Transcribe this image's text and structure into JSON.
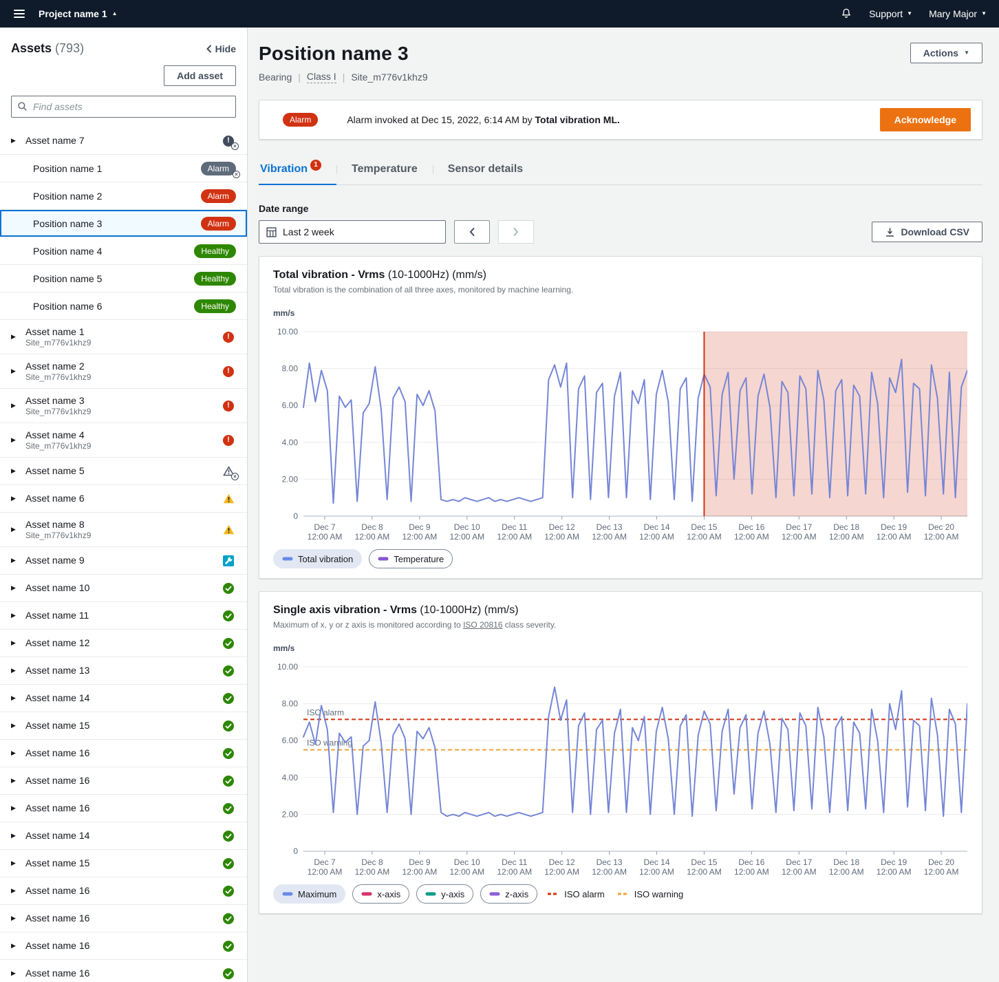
{
  "colors": {
    "alarm_red": "#d13212",
    "healthy_green": "#2e8700",
    "warning_yellow": "#f5b720",
    "maintenance_teal": "#00a1c9",
    "accent_blue": "#0972d3",
    "primary_orange": "#ec7211",
    "chart_line": "#7586d6"
  },
  "topbar": {
    "project_name": "Project name 1",
    "support_label": "Support",
    "user_name": "Mary Major"
  },
  "sidebar": {
    "title": "Assets",
    "count": "(793)",
    "hide_label": "Hide",
    "add_asset_label": "Add asset",
    "search_placeholder": "Find assets",
    "items": [
      {
        "kind": "asset",
        "label": "Asset name 7",
        "icon": "alarm-muted"
      },
      {
        "kind": "position",
        "label": "Position name 1",
        "badge": "Alarm",
        "muted": true
      },
      {
        "kind": "position",
        "label": "Position name 2",
        "badge": "Alarm"
      },
      {
        "kind": "position",
        "label": "Position name 3",
        "badge": "Alarm",
        "selected": true
      },
      {
        "kind": "position",
        "label": "Position name 4",
        "badge": "Healthy"
      },
      {
        "kind": "position",
        "label": "Position name 5",
        "badge": "Healthy"
      },
      {
        "kind": "position",
        "label": "Position name 6",
        "badge": "Healthy"
      },
      {
        "kind": "asset",
        "label": "Asset name 1",
        "sublabel": "Site_m776v1khz9",
        "icon": "alarm"
      },
      {
        "kind": "asset",
        "label": "Asset name 2",
        "sublabel": "Site_m776v1khz9",
        "icon": "alarm"
      },
      {
        "kind": "asset",
        "label": "Asset name 3",
        "sublabel": "Site_m776v1khz9",
        "icon": "alarm"
      },
      {
        "kind": "asset",
        "label": "Asset name 4",
        "sublabel": "Site_m776v1khz9",
        "icon": "alarm"
      },
      {
        "kind": "asset",
        "label": "Asset name 5",
        "icon": "warning-muted"
      },
      {
        "kind": "asset",
        "label": "Asset name 6",
        "icon": "warning"
      },
      {
        "kind": "asset",
        "label": "Asset name 8",
        "sublabel": "Site_m776v1khz9",
        "icon": "warning"
      },
      {
        "kind": "asset",
        "label": "Asset name 9",
        "icon": "maintenance"
      },
      {
        "kind": "asset",
        "label": "Asset name 10",
        "icon": "healthy"
      },
      {
        "kind": "asset",
        "label": "Asset name 11",
        "icon": "healthy"
      },
      {
        "kind": "asset",
        "label": "Asset name 12",
        "icon": "healthy"
      },
      {
        "kind": "asset",
        "label": "Asset name 13",
        "icon": "healthy"
      },
      {
        "kind": "asset",
        "label": "Asset name 14",
        "icon": "healthy"
      },
      {
        "kind": "asset",
        "label": "Asset name 15",
        "icon": "healthy"
      },
      {
        "kind": "asset",
        "label": "Asset name 16",
        "icon": "healthy"
      },
      {
        "kind": "asset",
        "label": "Asset name 16",
        "icon": "healthy"
      },
      {
        "kind": "asset",
        "label": "Asset name 16",
        "icon": "healthy"
      },
      {
        "kind": "asset",
        "label": "Asset name 14",
        "icon": "healthy"
      },
      {
        "kind": "asset",
        "label": "Asset name 15",
        "icon": "healthy"
      },
      {
        "kind": "asset",
        "label": "Asset name 16",
        "icon": "healthy"
      },
      {
        "kind": "asset",
        "label": "Asset name 16",
        "icon": "healthy"
      },
      {
        "kind": "asset",
        "label": "Asset name 16",
        "icon": "healthy"
      },
      {
        "kind": "asset",
        "label": "Asset name 16",
        "icon": "healthy"
      }
    ]
  },
  "page": {
    "title": "Position name 3",
    "meta": [
      "Bearing",
      "Class I",
      "Site_m776v1khz9"
    ],
    "actions_label": "Actions"
  },
  "alarm_banner": {
    "badge": "Alarm",
    "message_prefix": "Alarm invoked at Dec 15, 2022, 6:14 AM by ",
    "message_bold": "Total vibration ML.",
    "acknowledge_label": "Acknowledge"
  },
  "tabs": [
    {
      "label": "Vibration",
      "badge": "1"
    },
    {
      "label": "Temperature"
    },
    {
      "label": "Sensor details"
    }
  ],
  "date_range": {
    "label": "Date range",
    "selected": "Last 2 week",
    "download_label": "Download CSV"
  },
  "chart_data": [
    {
      "type": "line",
      "title_bold": "Total vibration - Vrms",
      "title_rest": " (10-1000Hz) (mm/s)",
      "subtitle": "Total vibration is the combination of all three axes, monitored by machine learning.",
      "ylabel": "mm/s",
      "ylim": [
        0,
        10
      ],
      "yticks": [
        0,
        2,
        4,
        6,
        8,
        10
      ],
      "ytick_labels": [
        "0",
        "2.00",
        "4.00",
        "6.00",
        "8.00",
        "10.00"
      ],
      "x_ticks": [
        "Dec 7",
        "Dec 8",
        "Dec 9",
        "Dec 10",
        "Dec 11",
        "Dec 12",
        "Dec 13",
        "Dec 14",
        "Dec 15",
        "Dec 16",
        "Dec 17",
        "Dec 18",
        "Dec 19",
        "Dec 20"
      ],
      "x_tick_sub": "12:00 AM",
      "alarm_region": {
        "start_tick_index": 8,
        "color": "#d13212",
        "fill": "rgba(209,50,18,0.20)"
      },
      "series": [
        {
          "name": "Total vibration",
          "color": "#7586d6",
          "values": [
            5.9,
            8.3,
            6.2,
            7.9,
            6.8,
            0.7,
            6.5,
            5.9,
            6.3,
            0.8,
            5.6,
            6.1,
            8.1,
            5.8,
            0.9,
            6.4,
            7.0,
            6.2,
            0.8,
            6.6,
            6.0,
            6.8,
            5.7,
            0.9,
            0.8,
            0.9,
            0.8,
            1.0,
            0.9,
            0.8,
            0.9,
            1.0,
            0.8,
            0.9,
            0.8,
            0.9,
            1.0,
            0.9,
            0.8,
            0.9,
            1.0,
            7.4,
            8.2,
            7.0,
            8.3,
            1.0,
            6.9,
            7.6,
            0.9,
            6.7,
            7.2,
            1.0,
            6.5,
            7.8,
            1.0,
            6.8,
            6.1,
            7.4,
            0.9,
            6.6,
            7.9,
            6.2,
            0.9,
            6.9,
            7.5,
            0.8,
            6.4,
            7.7,
            7.0,
            1.1,
            6.6,
            7.8,
            2.0,
            6.8,
            7.5,
            1.2,
            6.5,
            7.7,
            5.9,
            1.0,
            7.3,
            6.7,
            1.1,
            7.6,
            6.9,
            1.2,
            7.9,
            6.3,
            1.0,
            6.8,
            7.4,
            1.1,
            7.1,
            6.5,
            1.2,
            7.8,
            6.1,
            1.0,
            7.5,
            6.7,
            8.5,
            1.3,
            7.2,
            6.9,
            1.1,
            8.2,
            6.4,
            1.2,
            7.8,
            1.0,
            7.0,
            7.9
          ]
        }
      ],
      "legend": [
        {
          "label": "Total vibration",
          "color": "#688ae8",
          "selected": true,
          "dash": false
        },
        {
          "label": "Temperature",
          "color": "#8456ce",
          "selected": false,
          "dash": false
        }
      ]
    },
    {
      "type": "line",
      "title_bold": "Single axis vibration - Vrms",
      "title_rest": " (10-1000Hz) (mm/s)",
      "subtitle_prefix": "Maximum of x, y or z axis is monitored according to ",
      "subtitle_link": "ISO 20816",
      "subtitle_suffix": " class severity.",
      "ylabel": "mm/s",
      "ylim": [
        0,
        10
      ],
      "yticks": [
        0,
        2,
        4,
        6,
        8,
        10
      ],
      "ytick_labels": [
        "0",
        "2.00",
        "4.00",
        "6.00",
        "8.00",
        "10.00"
      ],
      "x_ticks": [
        "Dec 7",
        "Dec 8",
        "Dec 9",
        "Dec 10",
        "Dec 11",
        "Dec 12",
        "Dec 13",
        "Dec 14",
        "Dec 15",
        "Dec 16",
        "Dec 17",
        "Dec 18",
        "Dec 19",
        "Dec 20"
      ],
      "x_tick_sub": "12:00 AM",
      "thresholds": [
        {
          "label": "ISO alarm",
          "value": 7.15,
          "color": "#d13212"
        },
        {
          "label": "ISO warning",
          "value": 5.5,
          "color": "#f2a23a"
        }
      ],
      "series": [
        {
          "name": "Maximum",
          "color": "#7586d6",
          "values": [
            6.2,
            7.0,
            5.8,
            7.9,
            6.6,
            2.1,
            6.4,
            5.9,
            6.2,
            2.0,
            5.7,
            6.0,
            8.1,
            5.9,
            2.1,
            6.3,
            6.9,
            6.1,
            2.0,
            6.5,
            6.1,
            6.7,
            5.6,
            2.1,
            1.9,
            2.0,
            1.9,
            2.1,
            2.0,
            1.9,
            2.0,
            2.1,
            1.9,
            2.0,
            1.9,
            2.0,
            2.1,
            2.0,
            1.9,
            2.0,
            2.1,
            7.3,
            8.9,
            7.1,
            8.2,
            2.1,
            6.8,
            7.5,
            2.0,
            6.6,
            7.1,
            2.1,
            6.4,
            7.7,
            2.1,
            6.7,
            6.0,
            7.3,
            2.0,
            6.5,
            7.8,
            6.1,
            2.0,
            6.8,
            7.4,
            1.9,
            6.3,
            7.6,
            6.9,
            2.2,
            6.5,
            7.7,
            3.1,
            6.7,
            7.4,
            2.3,
            6.4,
            7.6,
            5.8,
            2.1,
            7.2,
            6.6,
            2.2,
            7.5,
            6.8,
            2.3,
            7.8,
            6.2,
            2.1,
            6.7,
            7.3,
            2.2,
            7.0,
            6.4,
            2.3,
            7.7,
            6.0,
            2.1,
            8.0,
            6.6,
            8.7,
            2.4,
            7.1,
            6.8,
            2.2,
            8.3,
            6.3,
            1.9,
            7.7,
            6.9,
            2.1,
            8.0
          ]
        }
      ],
      "legend": [
        {
          "label": "Maximum",
          "color": "#688ae8",
          "selected": true,
          "dash": false
        },
        {
          "label": "x-axis",
          "color": "#d6336c",
          "selected": false,
          "dash": false
        },
        {
          "label": "y-axis",
          "color": "#0f9d8a",
          "selected": false,
          "dash": false
        },
        {
          "label": "z-axis",
          "color": "#8c5fd9",
          "selected": false,
          "dash": false
        },
        {
          "label": "ISO alarm",
          "color": "#d13212",
          "selected": false,
          "dash": true,
          "plain": true
        },
        {
          "label": "ISO warning",
          "color": "#f2a23a",
          "selected": false,
          "dash": true,
          "plain": true
        }
      ]
    }
  ]
}
